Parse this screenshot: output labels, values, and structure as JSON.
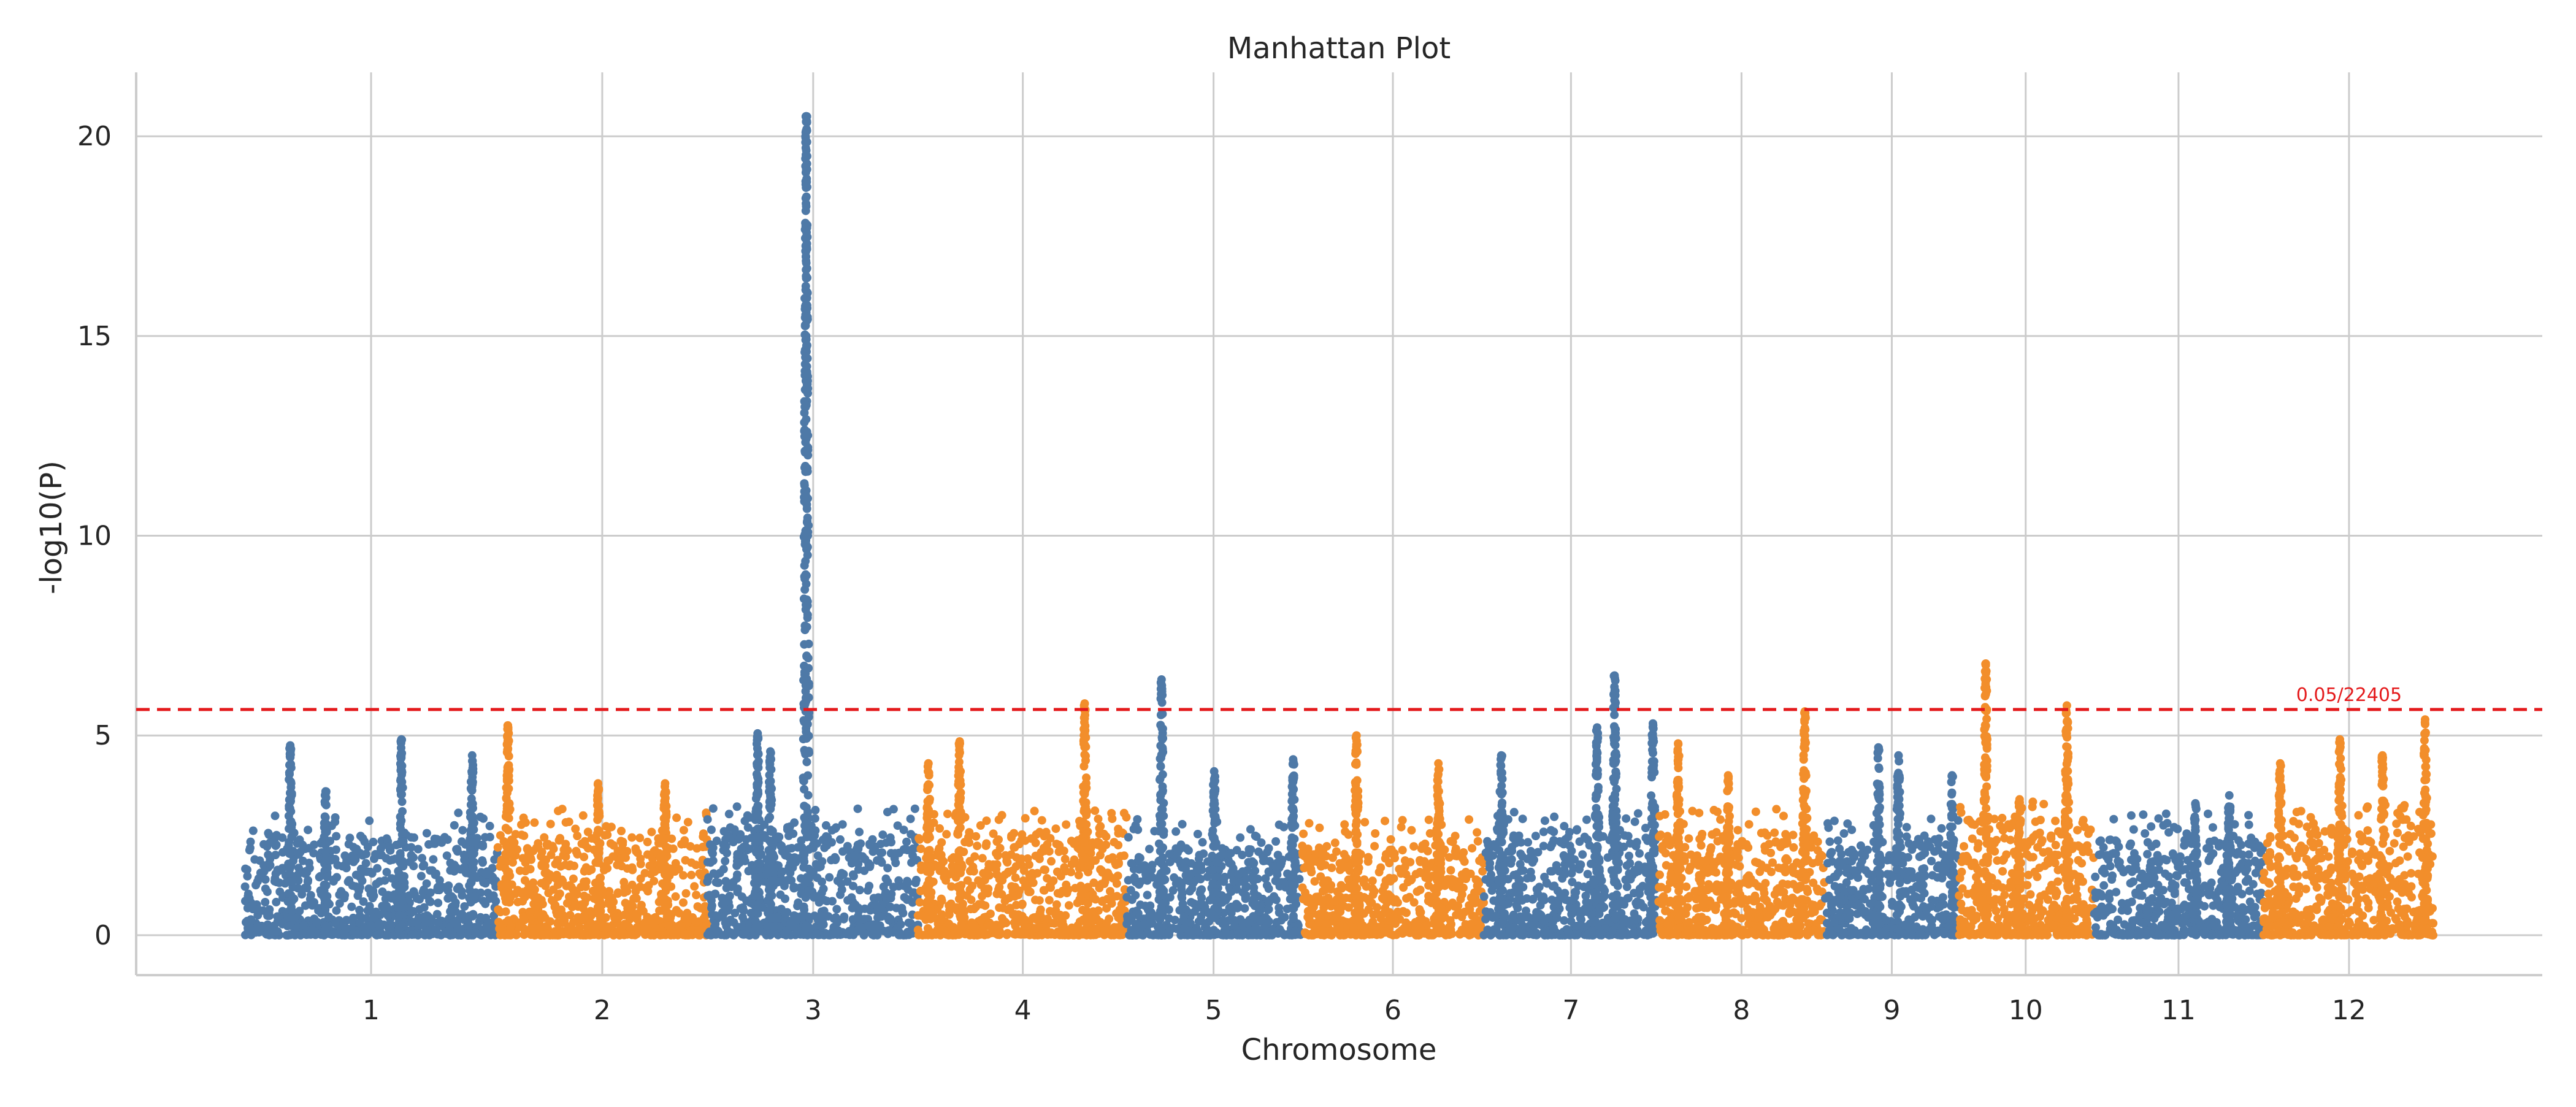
{
  "chart_data": {
    "type": "scatter",
    "title": "Manhattan Plot",
    "xlabel": "Chromosome",
    "ylabel": "-log10(P)",
    "ylim": [
      -1,
      21.6
    ],
    "yticks": [
      0,
      5,
      10,
      15,
      20
    ],
    "grid": true,
    "legend": "none",
    "colors": {
      "odd": "#4e79a7",
      "even": "#f28e2b",
      "threshold": "#e41a1c",
      "grid": "#cccccc"
    },
    "threshold": {
      "value": 5.65,
      "label": "0.05/22405",
      "style": "dashed"
    },
    "chromosomes": [
      {
        "label": "1",
        "start": 0.0,
        "end": 1.0,
        "center": 0.5,
        "bulk_max": 2.5,
        "peaks": [
          {
            "pos": 0.18,
            "max": 4.75
          },
          {
            "pos": 0.62,
            "max": 4.9
          },
          {
            "pos": 0.32,
            "max": 3.6
          },
          {
            "pos": 0.9,
            "max": 4.5
          }
        ]
      },
      {
        "label": "2",
        "start": 1.0,
        "end": 1.83,
        "center": 1.415,
        "bulk_max": 2.6,
        "peaks": [
          {
            "pos": 0.05,
            "max": 5.25
          },
          {
            "pos": 0.48,
            "max": 3.8
          },
          {
            "pos": 0.8,
            "max": 3.8
          }
        ]
      },
      {
        "label": "3",
        "start": 1.83,
        "end": 2.665,
        "center": 2.25,
        "bulk_max": 2.7,
        "peaks": [
          {
            "pos": 0.47,
            "max": 20.5
          },
          {
            "pos": 0.24,
            "max": 5.05
          },
          {
            "pos": 0.3,
            "max": 4.6
          }
        ]
      },
      {
        "label": "4",
        "start": 2.665,
        "end": 3.49,
        "center": 3.08,
        "bulk_max": 2.6,
        "peaks": [
          {
            "pos": 0.2,
            "max": 4.85
          },
          {
            "pos": 0.8,
            "max": 5.8
          },
          {
            "pos": 0.05,
            "max": 4.3
          }
        ]
      },
      {
        "label": "5",
        "start": 3.49,
        "end": 4.185,
        "center": 3.835,
        "bulk_max": 2.2,
        "peaks": [
          {
            "pos": 0.2,
            "max": 6.4
          },
          {
            "pos": 0.5,
            "max": 4.1
          },
          {
            "pos": 0.95,
            "max": 4.4
          }
        ]
      },
      {
        "label": "6",
        "start": 4.185,
        "end": 4.905,
        "center": 4.545,
        "bulk_max": 2.2,
        "peaks": [
          {
            "pos": 0.3,
            "max": 5.0
          },
          {
            "pos": 0.75,
            "max": 4.3
          }
        ]
      },
      {
        "label": "7",
        "start": 4.905,
        "end": 5.595,
        "center": 5.25,
        "bulk_max": 2.5,
        "peaks": [
          {
            "pos": 0.75,
            "max": 6.5
          },
          {
            "pos": 0.65,
            "max": 5.2
          },
          {
            "pos": 0.97,
            "max": 5.3
          },
          {
            "pos": 0.1,
            "max": 4.5
          }
        ]
      },
      {
        "label": "8",
        "start": 5.595,
        "end": 6.255,
        "center": 5.925,
        "bulk_max": 2.6,
        "peaks": [
          {
            "pos": 0.88,
            "max": 5.6
          },
          {
            "pos": 0.42,
            "max": 4.0
          },
          {
            "pos": 0.12,
            "max": 4.8
          }
        ]
      },
      {
        "label": "9",
        "start": 6.255,
        "end": 6.785,
        "center": 6.52,
        "bulk_max": 2.4,
        "peaks": [
          {
            "pos": 0.4,
            "max": 4.7
          },
          {
            "pos": 0.55,
            "max": 4.5
          },
          {
            "pos": 0.95,
            "max": 4.0
          }
        ]
      },
      {
        "label": "10",
        "start": 6.785,
        "end": 7.32,
        "center": 7.05,
        "bulk_max": 2.9,
        "peaks": [
          {
            "pos": 0.2,
            "max": 6.8
          },
          {
            "pos": 0.8,
            "max": 5.75
          },
          {
            "pos": 0.45,
            "max": 3.4
          }
        ]
      },
      {
        "label": "11",
        "start": 7.32,
        "end": 7.99,
        "center": 7.655,
        "bulk_max": 2.4,
        "peaks": [
          {
            "pos": 0.8,
            "max": 3.5
          },
          {
            "pos": 0.6,
            "max": 3.3
          }
        ]
      },
      {
        "label": "12",
        "start": 7.99,
        "end": 8.665,
        "center": 8.33,
        "bulk_max": 2.8,
        "peaks": [
          {
            "pos": 0.95,
            "max": 5.4
          },
          {
            "pos": 0.45,
            "max": 4.9
          },
          {
            "pos": 0.1,
            "max": 4.3
          },
          {
            "pos": 0.7,
            "max": 4.5
          }
        ]
      }
    ]
  }
}
